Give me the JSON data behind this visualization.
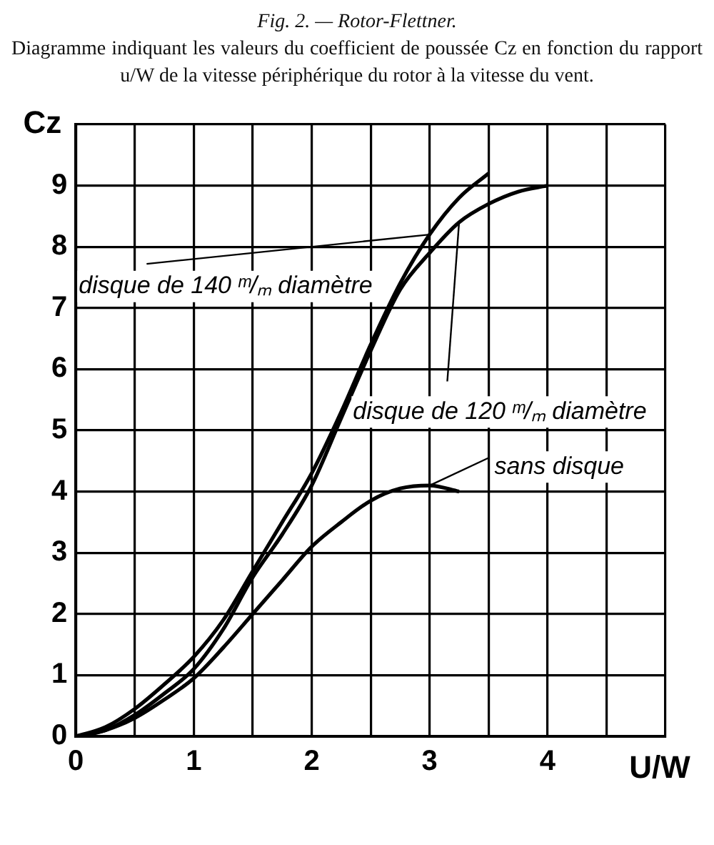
{
  "chart_data": {
    "type": "line",
    "title": "Fig. 2. — Rotor-Flettner.",
    "subtitle": "Diagramme indiquant les valeurs du coefficient de poussée Cz en fonction du rapport u/W de la vitesse périphérique du rotor à la vitesse du vent.",
    "xlabel": "U/W",
    "ylabel": "Cz",
    "xlim": [
      0,
      5
    ],
    "xticks": [
      0,
      {
        "value": 0.5,
        "label": null
      },
      1,
      {
        "value": 1.5,
        "label": null
      },
      2,
      {
        "value": 2.5,
        "label": null
      },
      3,
      {
        "value": 3.5,
        "label": null
      },
      4,
      {
        "value": 4.5,
        "label": null
      },
      {
        "value": 5,
        "label": null
      }
    ],
    "ylim": [
      0,
      10
    ],
    "yticks": [
      0,
      1,
      2,
      3,
      4,
      5,
      6,
      7,
      8,
      9,
      {
        "value": 10,
        "label": null
      }
    ],
    "grid": true,
    "marker": "none",
    "series": [
      {
        "name": "disque de 140 ᵐ/ₘ diamètre",
        "color": "#000000",
        "x": [
          0,
          0.25,
          0.5,
          0.75,
          1,
          1.25,
          1.5,
          1.75,
          2,
          2.25,
          2.5,
          2.75,
          3,
          3.25,
          3.5
        ],
        "values": [
          0,
          0.15,
          0.45,
          0.85,
          1.3,
          1.9,
          2.7,
          3.5,
          4.3,
          5.3,
          6.4,
          7.4,
          8.2,
          8.8,
          9.2
        ]
      },
      {
        "name": "disque de 120 ᵐ/ₘ diamètre",
        "color": "#000000",
        "x": [
          0,
          0.25,
          0.5,
          0.75,
          1,
          1.25,
          1.5,
          1.75,
          2,
          2.25,
          2.5,
          2.75,
          3,
          3.25,
          3.5,
          3.75,
          4
        ],
        "values": [
          0,
          0.1,
          0.35,
          0.7,
          1.1,
          1.75,
          2.6,
          3.3,
          4.1,
          5.2,
          6.3,
          7.3,
          7.9,
          8.4,
          8.7,
          8.9,
          9.0
        ]
      },
      {
        "name": "sans disque",
        "color": "#000000",
        "x": [
          0,
          0.25,
          0.5,
          0.75,
          1,
          1.25,
          1.5,
          1.75,
          2,
          2.25,
          2.5,
          2.75,
          3,
          3.25
        ],
        "values": [
          0,
          0.1,
          0.3,
          0.6,
          0.95,
          1.45,
          2.0,
          2.55,
          3.1,
          3.5,
          3.85,
          4.05,
          4.1,
          4.0
        ]
      }
    ]
  }
}
